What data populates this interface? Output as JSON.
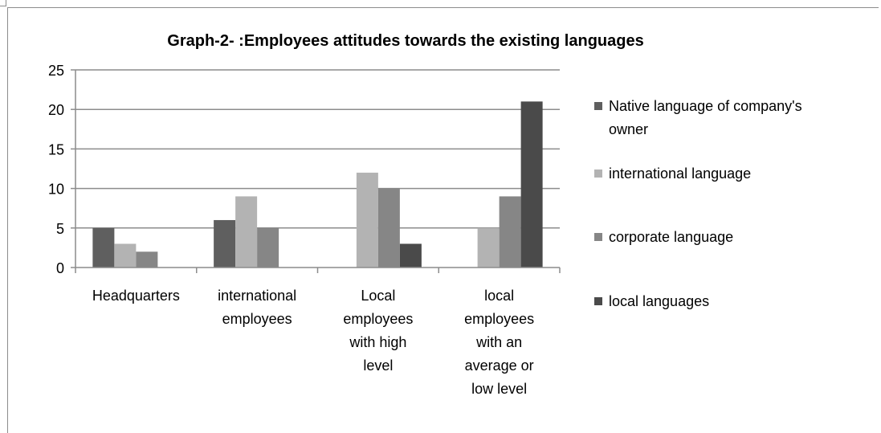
{
  "chart_data": {
    "type": "bar",
    "title": "Graph-2- :Employees attitudes towards the existing languages",
    "categories": [
      "Headquarters",
      "international employees",
      "Local employees with high level",
      "local employees with an average or low level"
    ],
    "category_lines": [
      [
        "Headquarters"
      ],
      [
        "international",
        "employees"
      ],
      [
        "Local",
        "employees",
        "with high",
        "level"
      ],
      [
        "local",
        "employees",
        "with an",
        "average or",
        "low level"
      ]
    ],
    "series": [
      {
        "name": "Native language of company's owner",
        "name_lines": [
          "Native language of company's",
          "owner"
        ],
        "color": "#5f5f5f",
        "values": [
          5,
          6,
          0,
          0
        ]
      },
      {
        "name": "international language",
        "name_lines": [
          "international language"
        ],
        "color": "#b3b3b3",
        "values": [
          3,
          9,
          12,
          5
        ]
      },
      {
        "name": "corporate language",
        "name_lines": [
          "corporate language"
        ],
        "color": "#868686",
        "values": [
          2,
          5,
          10,
          9
        ]
      },
      {
        "name": "local languages",
        "name_lines": [
          "local languages"
        ],
        "color": "#4a4a4a",
        "values": [
          0,
          0,
          3,
          21
        ]
      }
    ],
    "ylim": [
      0,
      25
    ],
    "yticks": [
      0,
      5,
      10,
      15,
      20,
      25
    ],
    "grid": true,
    "legend_position": "right",
    "xlabel": "",
    "ylabel": ""
  }
}
